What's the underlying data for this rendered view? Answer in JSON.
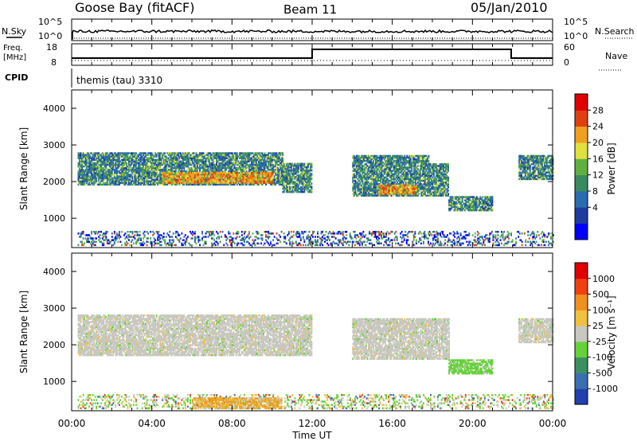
{
  "header": {
    "station": "Goose Bay (fitACF)",
    "beam": "Beam 11",
    "date": "05/Jan/2010"
  },
  "panels": {
    "nsky": {
      "left_label": "N.Sky",
      "right_label": "N.Search",
      "left_ticks": [
        "10^5",
        "10^0"
      ],
      "right_ticks": [
        "10^5",
        "10^0"
      ]
    },
    "freq": {
      "left_label_1": "Freq.",
      "left_label_2": "[MHz]",
      "right_label": "Nave",
      "left_ticks": [
        "18",
        "8"
      ],
      "right_ticks": [
        "60",
        "0"
      ]
    },
    "cpid": {
      "label": "CPID",
      "program": "themis (tau) 3310"
    }
  },
  "time_axis": {
    "title": "Time UT",
    "ticks": [
      "00:00",
      "04:00",
      "08:00",
      "12:00",
      "16:00",
      "20:00",
      "00:00"
    ]
  },
  "colors": {
    "velocity_ground": "#c8c8c0",
    "velocity_green": "#66d23a",
    "velocity_orange": "#e8a020"
  },
  "chart_data": [
    {
      "type": "heatmap",
      "name": "power",
      "ylabel": "Slant Range [km]",
      "yticks": [
        "4000",
        "3000",
        "2000",
        "1000"
      ],
      "ylim": [
        200,
        4500
      ],
      "xlim_hours": [
        0,
        24
      ],
      "colorbar": {
        "title": "Power [dB]",
        "ticks": [
          "28",
          "24",
          "20",
          "16",
          "12",
          "8",
          "4"
        ],
        "colors": [
          "#0000ff",
          "#1e3ca0",
          "#2a6cb0",
          "#3a8a60",
          "#60b040",
          "#e0e040",
          "#f0a020",
          "#e04010",
          "#e00000"
        ]
      },
      "regions": [
        {
          "t0": 0.3,
          "t1": 10.5,
          "r0": 1900,
          "r1": 2800,
          "level": "moderate"
        },
        {
          "t0": 4.5,
          "t1": 10.0,
          "r0": 1950,
          "r1": 2250,
          "level": "strong"
        },
        {
          "t0": 10.5,
          "t1": 12.0,
          "r0": 1700,
          "r1": 2500,
          "level": "moderate"
        },
        {
          "t0": 14.0,
          "t1": 17.8,
          "r0": 1600,
          "r1": 2700,
          "level": "moderate"
        },
        {
          "t0": 15.3,
          "t1": 17.2,
          "r0": 1650,
          "r1": 1900,
          "level": "strong"
        },
        {
          "t0": 17.8,
          "t1": 18.8,
          "r0": 1600,
          "r1": 2500,
          "level": "moderate"
        },
        {
          "t0": 18.8,
          "t1": 21.0,
          "r0": 1200,
          "r1": 1600,
          "level": "moderate"
        },
        {
          "t0": 22.3,
          "t1": 24.0,
          "r0": 2050,
          "r1": 2700,
          "level": "moderate"
        },
        {
          "t0": 0.3,
          "t1": 24.0,
          "r0": 250,
          "r1": 650,
          "level": "weak"
        }
      ]
    },
    {
      "type": "heatmap",
      "name": "velocity",
      "ylabel": "Slant Range [km]",
      "yticks": [
        "4000",
        "3000",
        "2000",
        "1000"
      ],
      "ylim": [
        200,
        4500
      ],
      "xlim_hours": [
        0,
        24
      ],
      "colorbar": {
        "title": "Velocity [m s⁻¹]",
        "ticks": [
          "1000",
          "500",
          "100",
          "25",
          "-25",
          "-100",
          "-500",
          "-1000"
        ],
        "colors": [
          "#2040b0",
          "#3a70b0",
          "#3a9060",
          "#66d23a",
          "#c8c8c0",
          "#f0c040",
          "#f09020",
          "#f04010",
          "#e00000"
        ]
      },
      "regions": [
        {
          "t0": 0.3,
          "t1": 12.0,
          "r0": 1700,
          "r1": 2800,
          "level": "ground"
        },
        {
          "t0": 14.0,
          "t1": 18.8,
          "r0": 1600,
          "r1": 2700,
          "level": "ground"
        },
        {
          "t0": 18.8,
          "t1": 21.0,
          "r0": 1200,
          "r1": 1600,
          "level": "green"
        },
        {
          "t0": 22.3,
          "t1": 24.0,
          "r0": 2050,
          "r1": 2700,
          "level": "ground"
        },
        {
          "t0": 0.3,
          "t1": 24.0,
          "r0": 250,
          "r1": 650,
          "level": "mixed"
        },
        {
          "t0": 6.0,
          "t1": 10.5,
          "r0": 250,
          "r1": 550,
          "level": "orange"
        }
      ]
    }
  ]
}
